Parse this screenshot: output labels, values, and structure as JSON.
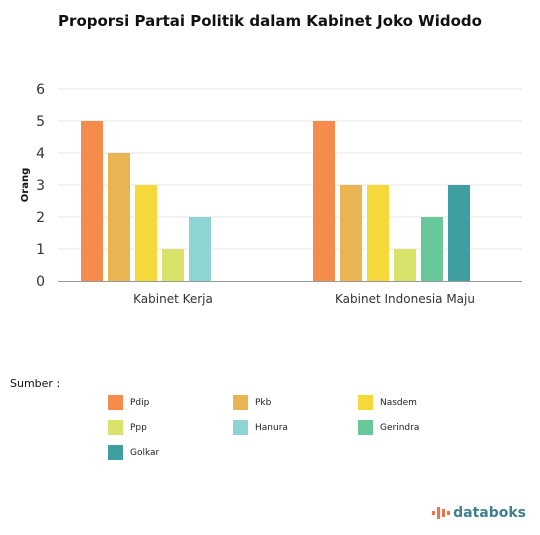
{
  "chart_data": {
    "type": "bar",
    "title": "Proporsi Partai Politik dalam Kabinet Joko Widodo",
    "ylabel": "Orang",
    "xlabel": "",
    "ylim": [
      0,
      6
    ],
    "yticks": [
      0,
      1,
      2,
      3,
      4,
      5,
      6
    ],
    "grid": true,
    "legend_position": "bottom",
    "categories": [
      "Kabinet Kerja",
      "Kabinet Indonesia Maju"
    ],
    "series": [
      {
        "name": "Pdip",
        "color": "#f58c4b",
        "values": [
          5,
          5
        ]
      },
      {
        "name": "Pkb",
        "color": "#e8b552",
        "values": [
          4,
          3
        ]
      },
      {
        "name": "Nasdem",
        "color": "#f5d83a",
        "values": [
          3,
          3
        ]
      },
      {
        "name": "Ppp",
        "color": "#d9e36a",
        "values": [
          1,
          1
        ]
      },
      {
        "name": "Hanura",
        "color": "#8dd5d2",
        "values": [
          2,
          null
        ]
      },
      {
        "name": "Gerindra",
        "color": "#69c89a",
        "values": [
          null,
          2
        ]
      },
      {
        "name": "Golkar",
        "color": "#3f9ea0",
        "values": [
          null,
          3
        ]
      }
    ]
  },
  "source_label": "Sumber :",
  "brand": {
    "name": "databoks",
    "icon": "databoks-logo-icon",
    "color": "#3f7f8f"
  }
}
